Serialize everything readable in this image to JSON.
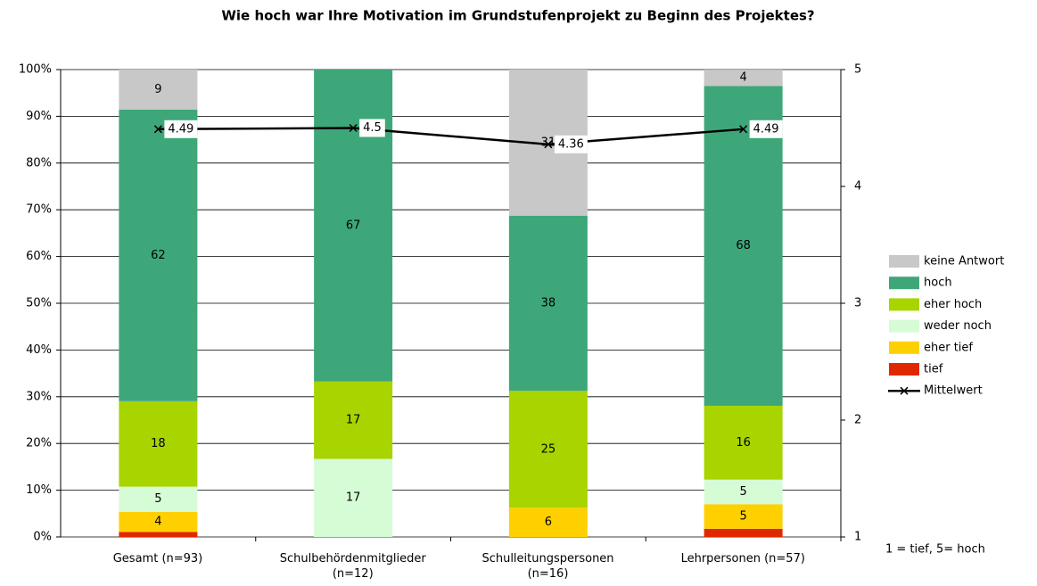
{
  "chart_data": {
    "type": "stacked-bar-line",
    "title": "Wie hoch war Ihre Motivation im Grundstufenprojekt zu Beginn des Projektes?",
    "categories": [
      "Gesamt (n=93)",
      "Schulbehördenmitglieder\n(n=12)",
      "Schulleitungspersonen\n(n=16)",
      "Lehrpersonen (n=57)"
    ],
    "series": [
      {
        "name": "tief",
        "color": "#e02800",
        "values": [
          1.08,
          0,
          0,
          1.75
        ],
        "value_labels": [
          null,
          null,
          null,
          null
        ]
      },
      {
        "name": "eher tief",
        "color": "#ffd000",
        "values": [
          4.3,
          0,
          6.25,
          5.26
        ],
        "value_labels": [
          "4",
          null,
          "6",
          "5"
        ]
      },
      {
        "name": "weder noch",
        "color": "#d6fcd6",
        "values": [
          5.38,
          16.7,
          0,
          5.26
        ],
        "value_labels": [
          "5",
          "17",
          null,
          "5"
        ]
      },
      {
        "name": "eher hoch",
        "color": "#a8d400",
        "values": [
          18.28,
          16.6,
          25,
          15.79
        ],
        "value_labels": [
          "18",
          "17",
          "25",
          "16"
        ]
      },
      {
        "name": "hoch",
        "color": "#3ea77a",
        "values": [
          62.37,
          66.7,
          37.5,
          68.42
        ],
        "value_labels": [
          "62",
          "67",
          "38",
          "68"
        ]
      },
      {
        "name": "keine Antwort",
        "color": "#c8c8c8",
        "values": [
          8.6,
          0,
          31.25,
          3.51
        ],
        "value_labels": [
          "9",
          null,
          "31",
          "4"
        ]
      },
      {
        "name": "Mittelwert",
        "color": "#000000",
        "axis": "y2",
        "values": [
          4.49,
          4.5,
          4.36,
          4.49
        ]
      }
    ],
    "ylim": [
      0,
      100
    ],
    "yticks": [
      {
        "value": 0,
        "label": "0%"
      },
      {
        "value": 10,
        "label": "10%"
      },
      {
        "value": 20,
        "label": "20%"
      },
      {
        "value": 30,
        "label": "30%"
      },
      {
        "value": 40,
        "label": "40%"
      },
      {
        "value": 50,
        "label": "50%"
      },
      {
        "value": 60,
        "label": "60%"
      },
      {
        "value": 70,
        "label": "70%"
      },
      {
        "value": 80,
        "label": "80%"
      },
      {
        "value": 90,
        "label": "90%"
      },
      {
        "value": 100,
        "label": "100%"
      }
    ],
    "y2lim": [
      1,
      5
    ],
    "y2ticks": [
      1,
      2,
      3,
      4,
      5
    ],
    "grid": true,
    "annotation": "1 = tief, 5= hoch"
  }
}
